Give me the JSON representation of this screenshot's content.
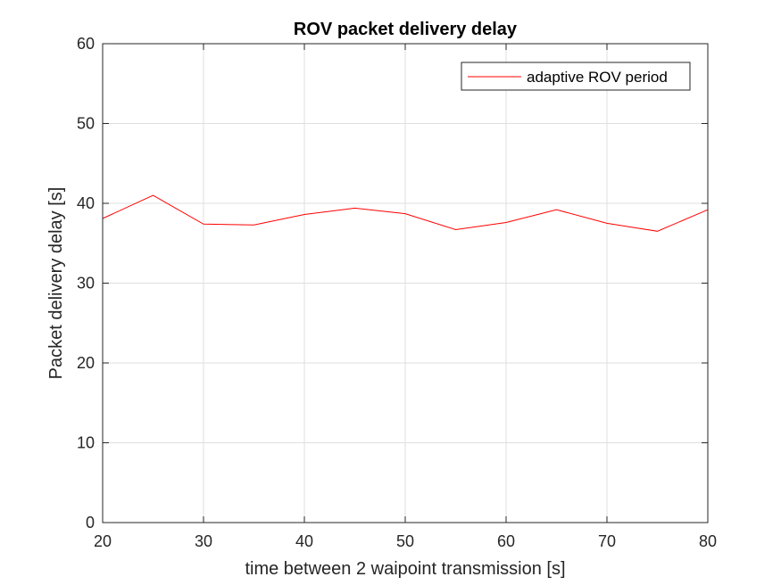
{
  "chart_data": {
    "type": "line",
    "title": "ROV packet delivery delay",
    "xlabel": "time between 2 waipoint transmission [s]",
    "ylabel": "Packet delivery delay [s]",
    "xlim": [
      20,
      80
    ],
    "ylim": [
      0,
      60
    ],
    "xticks": [
      20,
      30,
      40,
      50,
      60,
      70,
      80
    ],
    "yticks": [
      0,
      10,
      20,
      30,
      40,
      50,
      60
    ],
    "grid": true,
    "legend_position": "top-right",
    "series": [
      {
        "name": "adaptive ROV period",
        "color": "#ff0000",
        "x": [
          20,
          25,
          30,
          35,
          40,
          45,
          50,
          55,
          60,
          65,
          70,
          75,
          80
        ],
        "y": [
          38.1,
          41.0,
          37.4,
          37.3,
          38.6,
          39.4,
          38.7,
          36.7,
          37.6,
          39.2,
          37.5,
          36.5,
          39.2
        ]
      }
    ]
  }
}
